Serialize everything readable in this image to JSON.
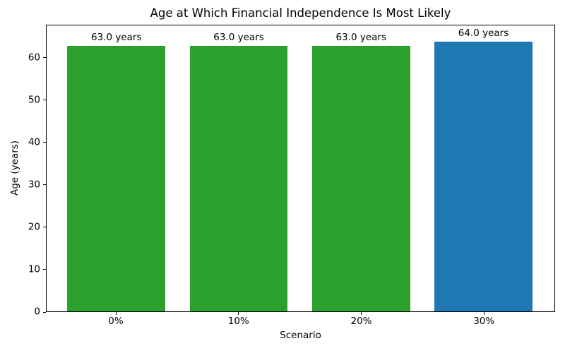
{
  "chart_data": {
    "type": "bar",
    "title": "Age at Which Financial Independence Is Most Likely",
    "xlabel": "Scenario",
    "ylabel": "Age (years)",
    "categories": [
      "0%",
      "10%",
      "20%",
      "30%"
    ],
    "values": [
      63.0,
      63.0,
      63.0,
      64.0
    ],
    "bar_labels": [
      "63.0 years",
      "63.0 years",
      "63.0 years",
      "64.0 years"
    ],
    "bar_colors": [
      "#2ca02c",
      "#2ca02c",
      "#2ca02c",
      "#1f77b4"
    ],
    "yticks": [
      0,
      10,
      20,
      30,
      40,
      50,
      60
    ],
    "ylim": [
      0,
      67.8
    ],
    "xlim": [
      -0.57,
      3.58
    ],
    "bar_width": 0.8,
    "grid": false,
    "legend_position": "none",
    "background_color": "#ffffff",
    "spine_color": "#000000",
    "text_color": "#000000"
  }
}
